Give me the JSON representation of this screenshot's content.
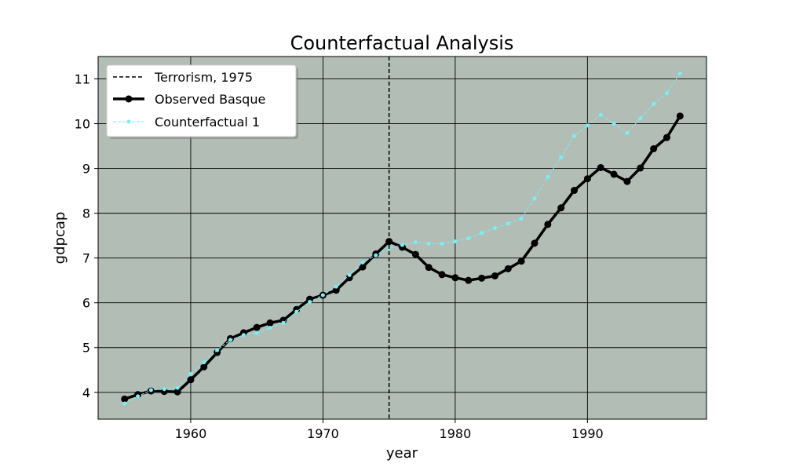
{
  "chart_data": {
    "type": "line",
    "title": "Counterfactual Analysis",
    "xlabel": "year",
    "ylabel": "gdpcap",
    "xlim": [
      1953,
      1999
    ],
    "ylim": [
      3.4,
      11.5
    ],
    "xticks": [
      1960,
      1970,
      1980,
      1990
    ],
    "yticks": [
      4,
      5,
      6,
      7,
      8,
      9,
      10,
      11
    ],
    "grid": true,
    "legend_position": "top-left",
    "background_color": "#b2bdb5",
    "vline": {
      "x": 1975,
      "label": "Terrorism, 1975",
      "color": "#000000"
    },
    "x": [
      1955,
      1956,
      1957,
      1958,
      1959,
      1960,
      1961,
      1962,
      1963,
      1964,
      1965,
      1966,
      1967,
      1968,
      1969,
      1970,
      1971,
      1972,
      1973,
      1974,
      1975,
      1976,
      1977,
      1978,
      1979,
      1980,
      1981,
      1982,
      1983,
      1984,
      1985,
      1986,
      1987,
      1988,
      1989,
      1990,
      1991,
      1992,
      1993,
      1994,
      1995,
      1996,
      1997
    ],
    "series": [
      {
        "name": "Observed Basque",
        "color": "#000000",
        "values": [
          3.85,
          3.95,
          4.03,
          4.02,
          4.01,
          4.28,
          4.57,
          4.89,
          5.2,
          5.33,
          5.45,
          5.55,
          5.61,
          5.85,
          6.08,
          6.17,
          6.28,
          6.56,
          6.8,
          7.09,
          7.37,
          7.24,
          7.08,
          6.79,
          6.63,
          6.56,
          6.5,
          6.55,
          6.6,
          6.76,
          6.93,
          7.33,
          7.75,
          8.12,
          8.51,
          8.77,
          9.02,
          8.87,
          8.71,
          9.01,
          9.44,
          9.69,
          10.17
        ]
      },
      {
        "name": "Counterfactual 1",
        "color": "#7aeef5",
        "values": [
          3.75,
          3.91,
          4.05,
          4.07,
          4.1,
          4.41,
          4.67,
          4.94,
          5.17,
          5.28,
          5.32,
          5.44,
          5.55,
          5.8,
          6.02,
          6.17,
          6.36,
          6.62,
          6.9,
          7.06,
          7.22,
          7.29,
          7.35,
          7.32,
          7.32,
          7.37,
          7.44,
          7.56,
          7.67,
          7.77,
          7.88,
          8.33,
          8.81,
          9.25,
          9.72,
          9.96,
          10.2,
          10.0,
          9.79,
          10.12,
          10.44,
          10.68,
          11.12
        ]
      }
    ]
  }
}
